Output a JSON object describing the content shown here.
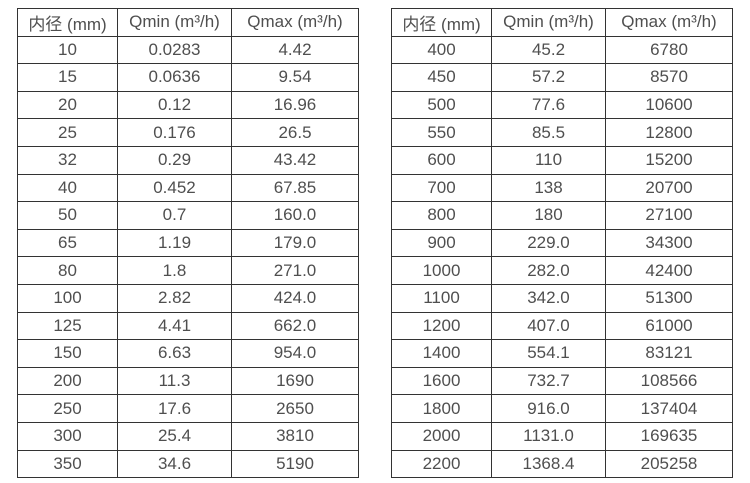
{
  "colors": {
    "background": "#ffffff",
    "border": "#333333",
    "text": "#4f4f4f"
  },
  "chart_data": [
    {
      "type": "table",
      "name": "flow-spec-small-diameters",
      "columns": [
        "内径 (mm)",
        "Qmin (m³/h)",
        "Qmax (m³/h)"
      ],
      "rows": [
        [
          "10",
          "0.0283",
          "4.42"
        ],
        [
          "15",
          "0.0636",
          "9.54"
        ],
        [
          "20",
          "0.12",
          "16.96"
        ],
        [
          "25",
          "0.176",
          "26.5"
        ],
        [
          "32",
          "0.29",
          "43.42"
        ],
        [
          "40",
          "0.452",
          "67.85"
        ],
        [
          "50",
          "0.7",
          "160.0"
        ],
        [
          "65",
          "1.19",
          "179.0"
        ],
        [
          "80",
          "1.8",
          "271.0"
        ],
        [
          "100",
          "2.82",
          "424.0"
        ],
        [
          "125",
          "4.41",
          "662.0"
        ],
        [
          "150",
          "6.63",
          "954.0"
        ],
        [
          "200",
          "11.3",
          "1690"
        ],
        [
          "250",
          "17.6",
          "2650"
        ],
        [
          "300",
          "25.4",
          "3810"
        ],
        [
          "350",
          "34.6",
          "5190"
        ]
      ]
    },
    {
      "type": "table",
      "name": "flow-spec-large-diameters",
      "columns": [
        "内径 (mm)",
        "Qmin (m³/h)",
        "Qmax (m³/h)"
      ],
      "rows": [
        [
          "400",
          "45.2",
          "6780"
        ],
        [
          "450",
          "57.2",
          "8570"
        ],
        [
          "500",
          "77.6",
          "10600"
        ],
        [
          "550",
          "85.5",
          "12800"
        ],
        [
          "600",
          "110",
          "15200"
        ],
        [
          "700",
          "138",
          "20700"
        ],
        [
          "800",
          "180",
          "27100"
        ],
        [
          "900",
          "229.0",
          "34300"
        ],
        [
          "1000",
          "282.0",
          "42400"
        ],
        [
          "1100",
          "342.0",
          "51300"
        ],
        [
          "1200",
          "407.0",
          "61000"
        ],
        [
          "1400",
          "554.1",
          "83121"
        ],
        [
          "1600",
          "732.7",
          "108566"
        ],
        [
          "1800",
          "916.0",
          "137404"
        ],
        [
          "2000",
          "1131.0",
          "169635"
        ],
        [
          "2200",
          "1368.4",
          "205258"
        ]
      ]
    }
  ]
}
